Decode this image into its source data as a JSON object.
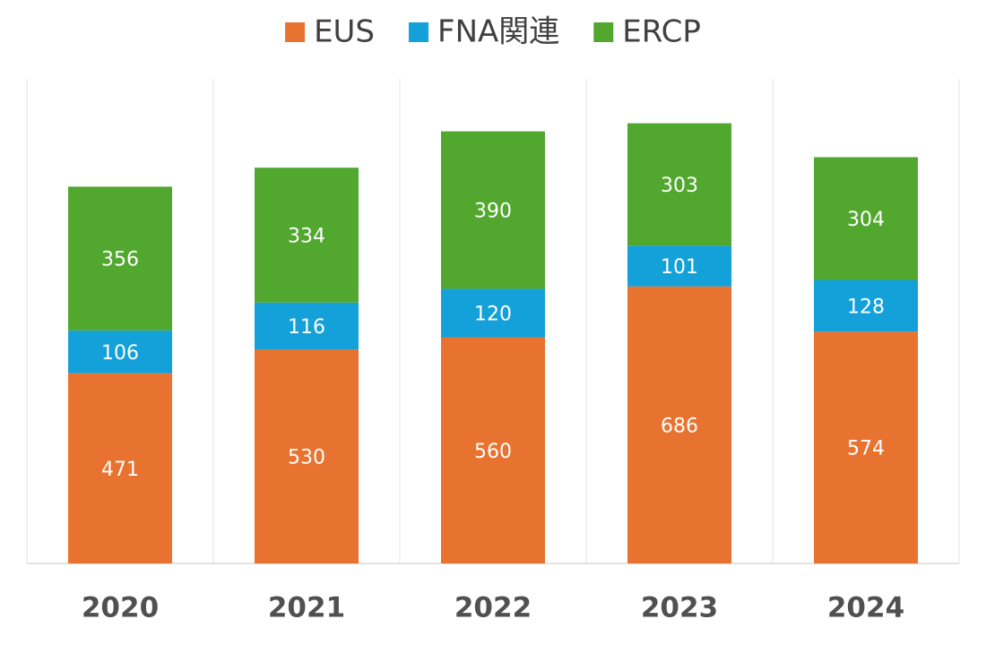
{
  "chart_data": {
    "type": "stacked_bar",
    "categories": [
      "2020",
      "2021",
      "2022",
      "2023",
      "2024"
    ],
    "series": [
      {
        "name": "EUS",
        "color": "#e8722f",
        "values": [
          471,
          530,
          560,
          686,
          574
        ]
      },
      {
        "name": "FNA関連",
        "color": "#14a0d8",
        "values": [
          106,
          116,
          120,
          101,
          128
        ]
      },
      {
        "name": "ERCP",
        "color": "#52a72f",
        "values": [
          356,
          334,
          390,
          303,
          304
        ]
      }
    ],
    "ylim": [
      0,
      1200
    ],
    "legend": "top"
  }
}
